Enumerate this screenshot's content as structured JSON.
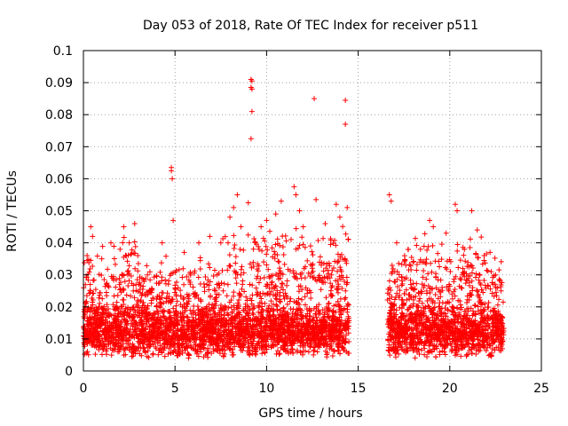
{
  "chart_data": {
    "type": "scatter",
    "title": "Day 053 of 2018, Rate Of TEC Index for receiver p511",
    "xlabel": "GPS time / hours",
    "ylabel": "ROTI / TECUs",
    "xlim": [
      0,
      25
    ],
    "ylim": [
      0,
      0.1
    ],
    "x_ticks": [
      "0",
      "5",
      "10",
      "15",
      "20",
      "25"
    ],
    "y_ticks": [
      "0",
      "0.01",
      "0.02",
      "0.03",
      "0.04",
      "0.05",
      "0.06",
      "0.07",
      "0.08",
      "0.09",
      "0.1"
    ],
    "grid": true,
    "marker": "+",
    "color": "#ff0000",
    "data_gap_hours": [
      14.5,
      16.6
    ],
    "series": [
      {
        "points": [
          [
            0.2,
            0.036
          ],
          [
            0.4,
            0.045
          ],
          [
            0.5,
            0.042
          ],
          [
            1.0,
            0.035
          ],
          [
            1.5,
            0.04
          ],
          [
            2.0,
            0.038
          ],
          [
            2.2,
            0.045
          ],
          [
            2.8,
            0.046
          ],
          [
            3.5,
            0.03
          ],
          [
            4.3,
            0.04
          ],
          [
            4.8,
            0.0635
          ],
          [
            4.8,
            0.0625
          ],
          [
            4.85,
            0.06
          ],
          [
            4.9,
            0.047
          ],
          [
            5.5,
            0.037
          ],
          [
            6.3,
            0.04
          ],
          [
            6.9,
            0.042
          ],
          [
            7.5,
            0.04
          ],
          [
            8.0,
            0.048
          ],
          [
            8.2,
            0.051
          ],
          [
            8.4,
            0.055
          ],
          [
            8.6,
            0.045
          ],
          [
            9.0,
            0.0525
          ],
          [
            9.15,
            0.091
          ],
          [
            9.2,
            0.0905
          ],
          [
            9.15,
            0.0885
          ],
          [
            9.2,
            0.088
          ],
          [
            9.2,
            0.081
          ],
          [
            9.15,
            0.0725
          ],
          [
            9.7,
            0.045
          ],
          [
            10.0,
            0.047
          ],
          [
            10.5,
            0.049
          ],
          [
            10.8,
            0.053
          ],
          [
            11.5,
            0.0575
          ],
          [
            11.6,
            0.055
          ],
          [
            11.8,
            0.05
          ],
          [
            12.0,
            0.045
          ],
          [
            12.6,
            0.085
          ],
          [
            12.7,
            0.0535
          ],
          [
            13.2,
            0.046
          ],
          [
            13.8,
            0.052
          ],
          [
            14.0,
            0.048
          ],
          [
            14.3,
            0.0845
          ],
          [
            14.3,
            0.077
          ],
          [
            14.4,
            0.051
          ],
          [
            16.7,
            0.055
          ],
          [
            16.8,
            0.053
          ],
          [
            17.1,
            0.04
          ],
          [
            17.6,
            0.033
          ],
          [
            18.0,
            0.034
          ],
          [
            18.4,
            0.038
          ],
          [
            18.9,
            0.047
          ],
          [
            19.1,
            0.045
          ],
          [
            19.8,
            0.043
          ],
          [
            20.3,
            0.052
          ],
          [
            20.4,
            0.05
          ],
          [
            20.8,
            0.038
          ],
          [
            21.2,
            0.05
          ],
          [
            21.5,
            0.044
          ],
          [
            22.2,
            0.037
          ],
          [
            22.5,
            0.03
          ],
          [
            22.8,
            0.025
          ]
        ]
      }
    ]
  }
}
